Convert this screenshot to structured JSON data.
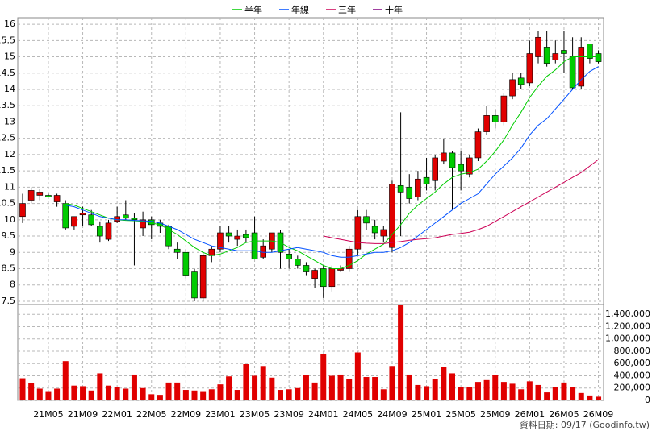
{
  "chart_data": [
    {
      "type": "candlestick",
      "categories": [
        null,
        null,
        null,
        "21M05",
        null,
        null,
        null,
        "21M09",
        null,
        null,
        null,
        "22M01",
        null,
        null,
        null,
        "22M05",
        null,
        null,
        null,
        "22M09",
        null,
        null,
        null,
        "23M01",
        null,
        null,
        null,
        "23M05",
        null,
        null,
        null,
        "23M09",
        null,
        null,
        null,
        "24M01",
        null,
        null,
        null,
        "24M05",
        null,
        null,
        null,
        "24M09",
        null,
        null,
        null,
        "25M01",
        null,
        null,
        null,
        "25M05",
        null,
        null,
        null,
        "25M09",
        null,
        null,
        null,
        "26M01",
        null,
        null,
        null,
        "26M05",
        null,
        null,
        null,
        "26M09"
      ],
      "open": [
        10.1,
        10.6,
        10.75,
        10.75,
        10.55,
        10.5,
        9.8,
        10.15,
        10.15,
        9.8,
        9.4,
        9.95,
        10.15,
        10.05,
        9.75,
        10.0,
        9.9,
        9.8,
        9.1,
        9.0,
        8.4,
        7.6,
        8.9,
        9.1,
        9.6,
        9.4,
        9.55,
        9.6,
        8.85,
        9.1,
        9.6,
        8.95,
        8.8,
        8.6,
        8.2,
        8.5,
        7.95,
        8.45,
        8.5,
        9.1,
        10.1,
        9.8,
        9.5,
        9.15,
        11.05,
        11.0,
        10.7,
        11.3,
        11.2,
        11.8,
        12.05,
        11.7,
        11.4,
        11.9,
        12.7,
        13.2,
        13.0,
        13.8,
        14.35,
        14.2,
        15.0,
        15.3,
        14.9,
        15.2,
        15.0,
        14.1,
        15.4,
        15.1
      ],
      "high": [
        10.8,
        11.0,
        10.95,
        10.8,
        10.8,
        10.6,
        10.1,
        10.4,
        10.3,
        9.95,
        10.0,
        10.4,
        10.6,
        10.2,
        10.25,
        10.1,
        10.0,
        9.85,
        9.3,
        9.1,
        8.5,
        9.0,
        9.2,
        9.8,
        9.8,
        9.7,
        9.7,
        10.1,
        9.4,
        9.6,
        9.7,
        9.1,
        8.9,
        8.7,
        8.5,
        8.6,
        8.6,
        8.6,
        9.2,
        10.3,
        10.3,
        10.0,
        9.8,
        11.2,
        13.3,
        11.4,
        11.5,
        11.9,
        12.0,
        12.5,
        12.1,
        12.1,
        12.0,
        12.8,
        13.5,
        13.4,
        13.9,
        14.5,
        14.5,
        15.5,
        15.8,
        15.8,
        15.5,
        15.8,
        15.6,
        15.6,
        15.4,
        15.2
      ],
      "low": [
        9.9,
        10.5,
        10.6,
        10.7,
        10.4,
        9.7,
        9.7,
        9.8,
        9.8,
        9.3,
        9.35,
        9.9,
        10.0,
        8.6,
        9.5,
        9.4,
        9.6,
        9.1,
        8.8,
        8.2,
        7.5,
        7.5,
        8.7,
        9.0,
        9.3,
        9.2,
        9.3,
        8.8,
        8.8,
        9.0,
        8.5,
        8.5,
        8.5,
        8.3,
        7.9,
        7.6,
        7.8,
        8.4,
        8.4,
        8.9,
        9.7,
        9.4,
        9.3,
        9.0,
        9.5,
        10.5,
        10.6,
        10.9,
        10.9,
        11.7,
        10.3,
        10.9,
        11.3,
        11.8,
        12.6,
        12.8,
        12.9,
        13.7,
        14.0,
        14.1,
        14.8,
        14.7,
        14.8,
        14.5,
        14.0,
        14.0,
        14.8,
        14.8
      ],
      "close": [
        10.5,
        10.9,
        10.85,
        10.7,
        10.75,
        9.75,
        10.1,
        10.2,
        9.85,
        9.5,
        9.9,
        10.1,
        10.05,
        10.0,
        10.0,
        9.85,
        9.8,
        9.2,
        9.0,
        8.3,
        7.6,
        8.9,
        9.1,
        9.6,
        9.5,
        9.5,
        9.45,
        8.8,
        9.2,
        9.6,
        9.0,
        8.8,
        8.6,
        8.4,
        8.45,
        7.95,
        8.5,
        8.5,
        9.1,
        10.1,
        9.9,
        9.6,
        9.7,
        11.1,
        10.85,
        10.65,
        11.25,
        11.1,
        11.9,
        12.05,
        11.6,
        11.5,
        11.9,
        12.7,
        13.2,
        13.0,
        13.8,
        14.3,
        14.15,
        15.1,
        15.6,
        14.8,
        15.1,
        15.1,
        14.05,
        15.3,
        14.95,
        14.85
      ],
      "up_color": "#e00000",
      "down_color": "#00cc00",
      "series": [
        {
          "name": "半年",
          "color": "#00cc00",
          "values": [
            null,
            null,
            null,
            null,
            null,
            10.5,
            10.45,
            10.35,
            10.25,
            10.15,
            10.05,
            10.0,
            9.98,
            9.97,
            9.95,
            9.9,
            9.85,
            9.7,
            9.55,
            9.35,
            9.15,
            9.0,
            8.9,
            8.95,
            9.05,
            9.15,
            9.3,
            9.35,
            9.35,
            9.35,
            9.3,
            9.15,
            9.05,
            8.9,
            8.75,
            8.6,
            8.5,
            8.5,
            8.6,
            8.75,
            8.95,
            9.1,
            9.25,
            9.55,
            9.85,
            10.2,
            10.45,
            10.65,
            10.85,
            11.1,
            11.3,
            11.4,
            11.45,
            11.55,
            11.8,
            12.1,
            12.45,
            12.9,
            13.3,
            13.75,
            14.1,
            14.4,
            14.6,
            14.85,
            15.0,
            15.0,
            15.0,
            15.0
          ]
        },
        {
          "name": "年線",
          "color": "#0050ff",
          "values": [
            null,
            null,
            null,
            null,
            null,
            10.45,
            10.4,
            10.3,
            10.2,
            10.1,
            10.05,
            10.0,
            10.0,
            9.98,
            9.97,
            9.95,
            9.9,
            9.8,
            9.7,
            9.55,
            9.4,
            9.3,
            9.2,
            9.15,
            9.1,
            9.05,
            9.05,
            9.05,
            9.0,
            9.0,
            9.05,
            9.1,
            9.15,
            9.1,
            9.05,
            9.0,
            8.9,
            8.85,
            8.85,
            8.9,
            8.95,
            9.0,
            9.0,
            9.05,
            9.15,
            9.3,
            9.5,
            9.7,
            9.9,
            10.1,
            10.3,
            10.5,
            10.65,
            10.8,
            11.1,
            11.4,
            11.65,
            11.9,
            12.2,
            12.6,
            12.9,
            13.1,
            13.4,
            13.7,
            14.0,
            14.3,
            14.55,
            14.7
          ]
        },
        {
          "name": "三年",
          "color": "#cc0055",
          "values": [
            null,
            null,
            null,
            null,
            null,
            null,
            null,
            null,
            null,
            null,
            null,
            null,
            null,
            null,
            null,
            null,
            null,
            null,
            null,
            null,
            null,
            null,
            null,
            null,
            null,
            null,
            null,
            null,
            null,
            null,
            null,
            null,
            null,
            null,
            null,
            9.5,
            9.45,
            9.4,
            9.35,
            9.3,
            9.28,
            9.27,
            9.27,
            9.3,
            9.33,
            9.37,
            9.4,
            9.42,
            9.45,
            9.5,
            9.55,
            9.58,
            9.62,
            9.7,
            9.8,
            9.95,
            10.1,
            10.25,
            10.4,
            10.55,
            10.7,
            10.85,
            11.0,
            11.15,
            11.3,
            11.45,
            11.65,
            11.85
          ]
        },
        {
          "name": "十年",
          "color": "#800080",
          "values": [
            null,
            null,
            null,
            null,
            null,
            null,
            null,
            null,
            null,
            null,
            null,
            null,
            null,
            null,
            null,
            null,
            null,
            null,
            null,
            null,
            null,
            null,
            null,
            null,
            null,
            null,
            null,
            null,
            null,
            null,
            null,
            null,
            null,
            null,
            null,
            null,
            null,
            null,
            null,
            null,
            null,
            null,
            null,
            null,
            null,
            null,
            null,
            null,
            null,
            null,
            null,
            null,
            null,
            null,
            null,
            null,
            null,
            null,
            null,
            null,
            null,
            null,
            null,
            null,
            null,
            null,
            null,
            null
          ]
        }
      ],
      "ylim": [
        7.4,
        16.2
      ],
      "yticks": [
        7.5,
        8,
        8.5,
        9,
        9.5,
        10,
        10.5,
        11,
        11.5,
        12,
        12.5,
        13,
        13.5,
        14,
        14.5,
        15,
        15.5,
        16
      ],
      "grid": true,
      "legend": "top"
    },
    {
      "type": "bar",
      "values": [
        360000,
        280000,
        190000,
        150000,
        190000,
        640000,
        240000,
        230000,
        160000,
        440000,
        240000,
        220000,
        190000,
        420000,
        200000,
        100000,
        90000,
        290000,
        290000,
        170000,
        160000,
        150000,
        180000,
        260000,
        390000,
        170000,
        590000,
        400000,
        560000,
        370000,
        170000,
        180000,
        200000,
        410000,
        290000,
        750000,
        400000,
        420000,
        350000,
        780000,
        380000,
        380000,
        180000,
        560000,
        1550000,
        420000,
        250000,
        230000,
        350000,
        540000,
        440000,
        220000,
        210000,
        300000,
        330000,
        410000,
        300000,
        270000,
        180000,
        310000,
        250000,
        130000,
        220000,
        290000,
        210000,
        120000,
        80000,
        60000
      ],
      "color": "#e00000",
      "ylim": [
        0,
        1560000
      ],
      "yticks": [
        0,
        {
          "value": 200000,
          "label": "200,000"
        },
        {
          "value": 400000,
          "label": "400,000"
        },
        {
          "value": 600000,
          "label": "600,000"
        },
        {
          "value": 800000,
          "label": "800,000"
        },
        {
          "value": 1000000,
          "label": "1,000,000"
        },
        {
          "value": 1200000,
          "label": "1,200,000"
        },
        {
          "value": 1400000,
          "label": "1,400,000"
        }
      ],
      "grid": true,
      "annotation": "資料日期: 09/17 (Goodinfo.tw)"
    }
  ]
}
